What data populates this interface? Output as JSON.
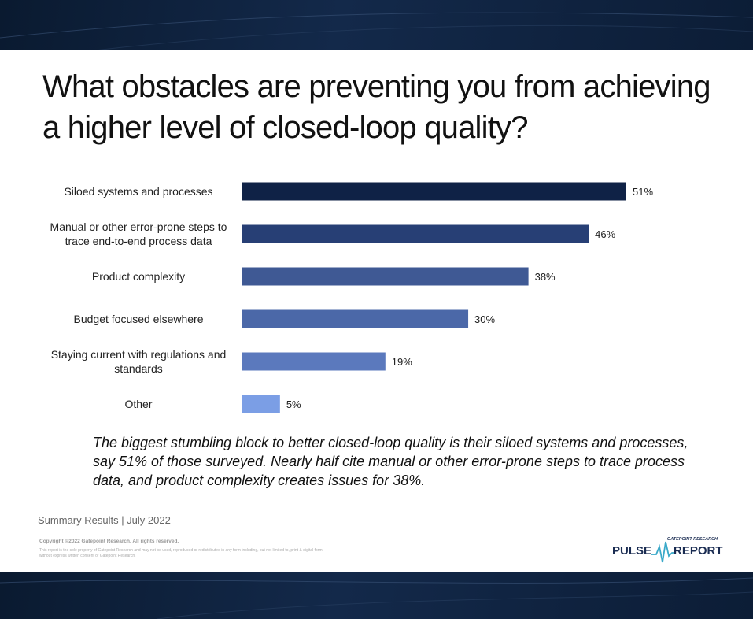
{
  "title": "What obstacles are preventing you from achieving a higher level of closed-loop quality?",
  "summary": "The biggest stumbling block to better closed-loop quality is their siloed systems and processes, say 51% of those surveyed. Nearly half cite manual or other error-prone steps to trace process data, and product complexity creates issues for 38%.",
  "footer": {
    "summary_label": "Summary Results | July 2022",
    "copyright": "Copyright ©2022 Gatepoint Research. All rights reserved.",
    "disclaimer": "This report is the sole property of Gatepoint Research and may not be used, reproduced or redistributed in any form including, but not limited to, print & digital form without express written consent of Gatepoint Research."
  },
  "logo": {
    "company": "GATEPOINT RESEARCH",
    "word1": "PULSE",
    "word2": "REPORT",
    "color": "#1a2c52"
  },
  "chart_data": {
    "type": "bar",
    "orientation": "horizontal",
    "categories": [
      [
        "Siloed systems and processes"
      ],
      [
        "Manual or other error-prone steps to",
        "trace end-to-end process data"
      ],
      [
        "Product complexity"
      ],
      [
        "Budget focused elsewhere"
      ],
      [
        "Staying current with regulations and",
        "standards"
      ],
      [
        "Other"
      ]
    ],
    "values": [
      51,
      46,
      38,
      30,
      19,
      5
    ],
    "value_labels": [
      "51%",
      "46%",
      "38%",
      "30%",
      "19%",
      "5%"
    ],
    "colors": [
      "#0f2246",
      "#273f75",
      "#3f5994",
      "#4b68a8",
      "#5b79bd",
      "#7b9ee5"
    ],
    "xlim": [
      0,
      51
    ],
    "grid": false,
    "legend": "none"
  }
}
